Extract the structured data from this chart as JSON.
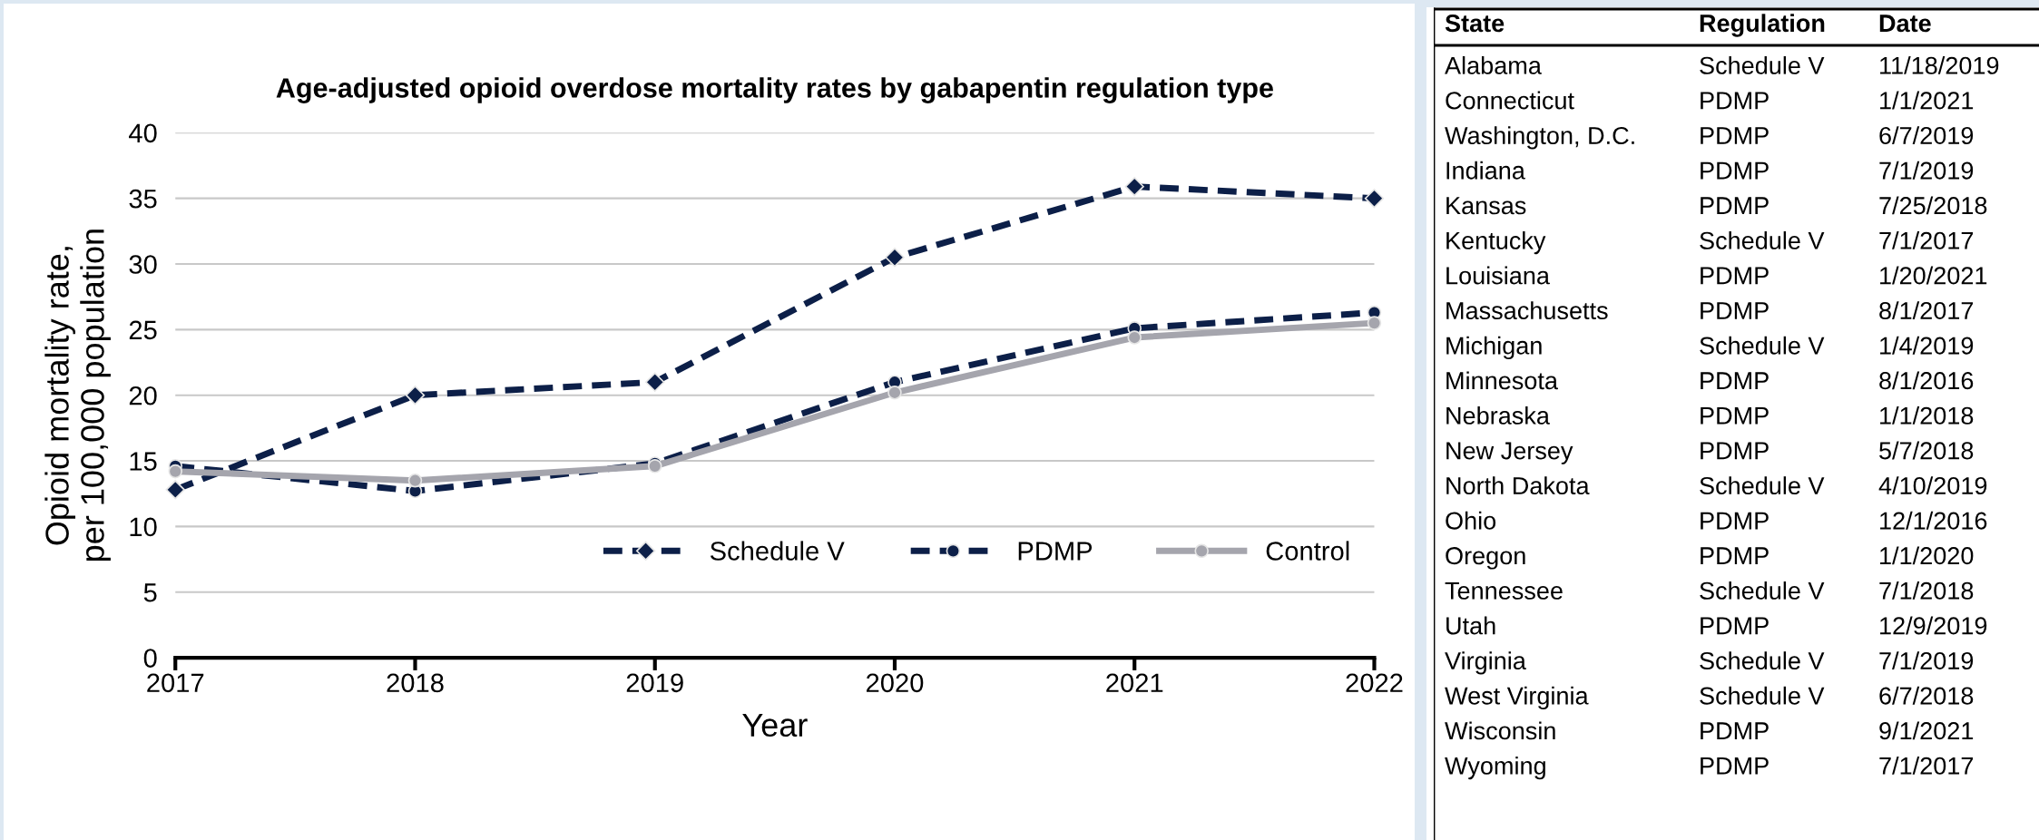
{
  "chart_data": [
    {
      "type": "line",
      "title": "Age-adjusted opioid overdose mortality rates by gabapentin regulation type",
      "xlabel": "Year",
      "ylabel": "Opioid mortality rate,\nper 100,000 population",
      "categories": [
        "2017",
        "2018",
        "2019",
        "2020",
        "2021",
        "2022"
      ],
      "ylim": [
        0,
        40
      ],
      "yticks": [
        0,
        5,
        10,
        15,
        20,
        25,
        30,
        35,
        40
      ],
      "grid": "y",
      "legend": "bottom right",
      "series": [
        {
          "name": "Schedule V",
          "color": "#0c1f48",
          "marker": "diamond",
          "line_style": "dashed",
          "values": [
            12.8,
            20.0,
            21.0,
            30.5,
            35.9,
            35.0
          ]
        },
        {
          "name": "PDMP",
          "color": "#0c1f48",
          "marker": "circle",
          "line_style": "dashed",
          "values": [
            14.6,
            12.7,
            14.8,
            21.0,
            25.1,
            26.3
          ]
        },
        {
          "name": "Control",
          "color": "#a5a5ad",
          "marker": "circle",
          "line_style": "solid",
          "values": [
            14.2,
            13.5,
            14.6,
            20.2,
            24.4,
            25.5
          ]
        }
      ]
    },
    {
      "type": "other",
      "annotations": [
        "State",
        "Regulation",
        "Date",
        "Alabama",
        "Schedule V",
        "11/18/2019",
        "Connecticut",
        "PDMP",
        "1/1/2021",
        "Washington, D.C.",
        "PDMP",
        "6/7/2019",
        "Indiana",
        "PDMP",
        "7/1/2019",
        "Kansas",
        "PDMP",
        "7/25/2018",
        "Kentucky",
        "Schedule V",
        "7/1/2017",
        "Louisiana",
        "PDMP",
        "1/20/2021",
        "Massachusetts",
        "PDMP",
        "8/1/2017",
        "Michigan",
        "Schedule V",
        "1/4/2019",
        "Minnesota",
        "PDMP",
        "8/1/2016",
        "Nebraska",
        "PDMP",
        "1/1/2018",
        "New Jersey",
        "PDMP",
        "5/7/2018",
        "North Dakota",
        "Schedule V",
        "4/10/2019",
        "Ohio",
        "PDMP",
        "12/1/2016",
        "Oregon",
        "PDMP",
        "1/1/2020",
        "Tennessee",
        "Schedule V",
        "7/1/2018",
        "Utah",
        "PDMP",
        "12/9/2019",
        "Virginia",
        "Schedule V",
        "7/1/2019",
        "West Virginia",
        "Schedule V",
        "6/7/2018",
        "Wisconsin",
        "PDMP",
        "9/1/2021",
        "Wyoming",
        "PDMP",
        "7/1/2017"
      ]
    }
  ]
}
